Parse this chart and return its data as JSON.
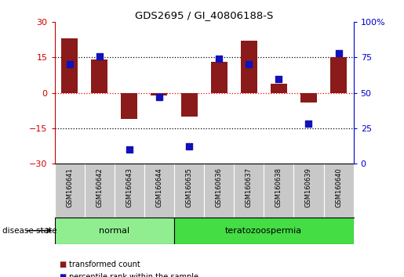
{
  "title": "GDS2695 / GI_40806188-S",
  "samples": [
    "GSM160641",
    "GSM160642",
    "GSM160643",
    "GSM160644",
    "GSM160635",
    "GSM160636",
    "GSM160637",
    "GSM160638",
    "GSM160639",
    "GSM160640"
  ],
  "red_bars": [
    23,
    14,
    -11,
    -1,
    -10,
    13,
    22,
    4,
    -4,
    15
  ],
  "blue_dots": [
    70,
    76,
    10,
    47,
    12,
    74,
    70,
    60,
    28,
    78
  ],
  "groups": [
    {
      "label": "normal",
      "start": 0,
      "end": 4
    },
    {
      "label": "teratozoospermia",
      "start": 4,
      "end": 10
    }
  ],
  "ylim_left": [
    -30,
    30
  ],
  "ylim_right": [
    0,
    100
  ],
  "yticks_left": [
    -30,
    -15,
    0,
    15,
    30
  ],
  "yticks_right": [
    0,
    25,
    50,
    75,
    100
  ],
  "ytick_labels_right": [
    "0",
    "25",
    "50",
    "75",
    "100%"
  ],
  "bar_color": "#8B1A1A",
  "dot_color": "#1111BB",
  "group_color_normal": "#90EE90",
  "group_color_terato": "#44DD44",
  "label_transformed": "transformed count",
  "label_percentile": "percentile rank within the sample",
  "disease_state_label": "disease state",
  "bg_color": "#FFFFFF",
  "bar_width": 0.55,
  "dot_size": 28,
  "sample_panel_color": "#C8C8C8",
  "left_color": "#CC0000",
  "right_color": "#0000CC"
}
